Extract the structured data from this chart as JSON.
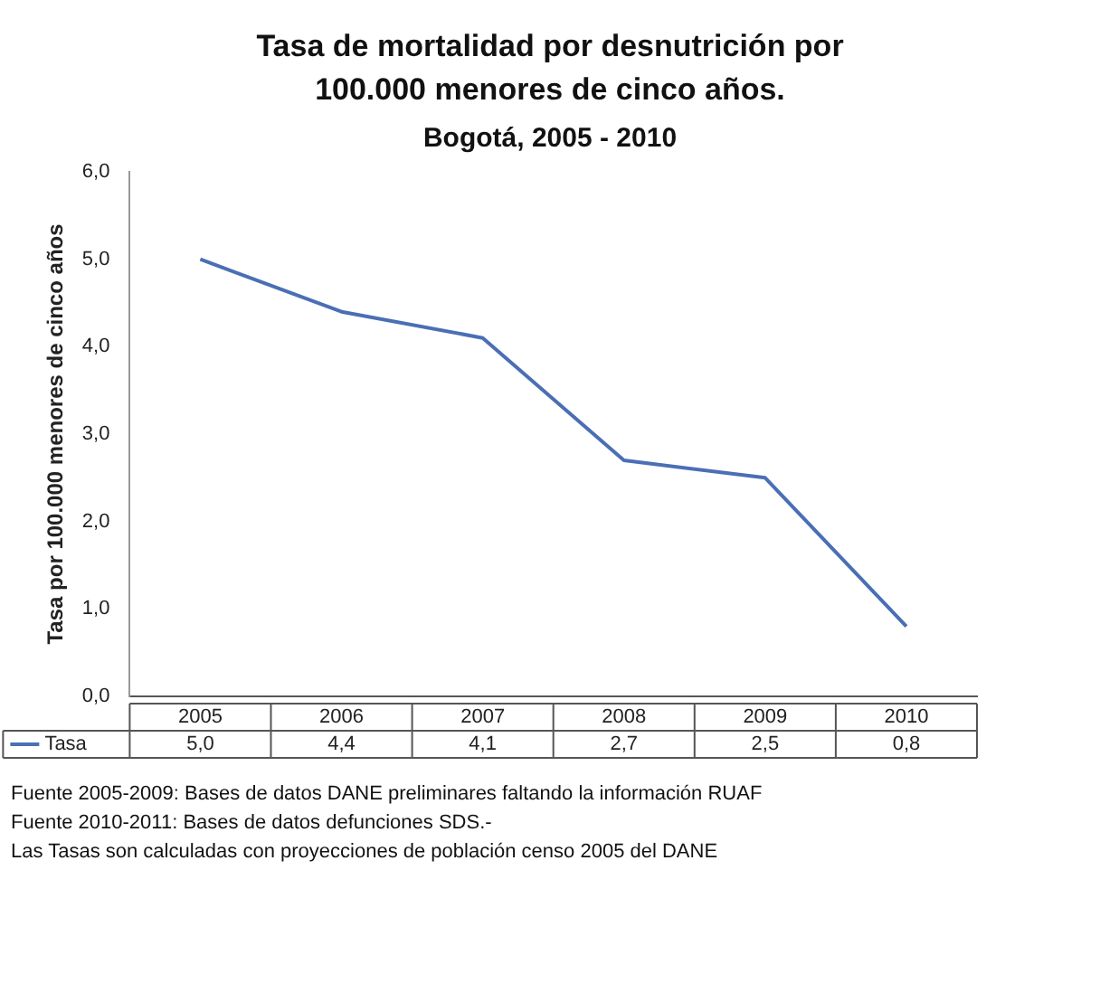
{
  "chart_data": {
    "type": "line",
    "title": "Tasa de mortalidad por desnutrición por 100.000 menores de cinco años.",
    "subtitle": "Bogotá, 2005 - 2010",
    "ylabel": "Tasa por 100.000 menores de cinco años",
    "categories": [
      "2005",
      "2006",
      "2007",
      "2008",
      "2009",
      "2010"
    ],
    "series": [
      {
        "name": "Tasa",
        "color": "#4a6fb5",
        "values": [
          5.0,
          4.4,
          4.1,
          2.7,
          2.5,
          0.8
        ],
        "value_labels": [
          "5,0",
          "4,4",
          "4,1",
          "2,7",
          "2,5",
          "0,8"
        ]
      }
    ],
    "ylim": [
      0,
      6
    ],
    "yticks": [
      {
        "value": 0,
        "label": "0,0"
      },
      {
        "value": 1,
        "label": "1,0"
      },
      {
        "value": 2,
        "label": "2,0"
      },
      {
        "value": 3,
        "label": "3,0"
      },
      {
        "value": 4,
        "label": "4,0"
      },
      {
        "value": 5,
        "label": "5,0"
      },
      {
        "value": 6,
        "label": "6,0"
      }
    ],
    "grid": false,
    "legend": "bottom",
    "marker": "none",
    "line_style": "solid",
    "annotations": [
      "Fuente 2005-2009: Bases de datos DANE preliminares faltando la información RUAF",
      "Fuente 2010-2011: Bases de datos defunciones SDS.-",
      "Las Tasas son calculadas con proyecciones de población censo 2005 del DANE"
    ]
  }
}
